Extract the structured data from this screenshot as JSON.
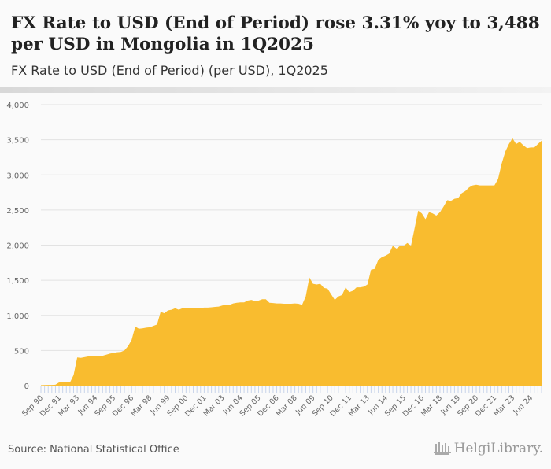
{
  "header": {
    "title": "FX Rate to USD (End of Period) rose 3.31% yoy to 3,488 per USD in Mongolia in 1Q2025",
    "subtitle": "FX Rate to USD (End of Period) (per USD), 1Q2025"
  },
  "footer": {
    "source": "Source: National Statistical Office",
    "logo_text": "HelgiLibrary."
  },
  "colors": {
    "fill": "#f9bc2f",
    "grid": "#e2e2e2",
    "axis": "#c8d4ea"
  },
  "chart_data": {
    "type": "area",
    "title": "FX Rate to USD (End of Period) (per USD), 1Q2025",
    "xlabel": "",
    "ylabel": "per USD",
    "frequency": "quarterly",
    "start": "3Q1990",
    "end": "1Q2025",
    "ylim": [
      0,
      4000
    ],
    "y_ticks": [
      0,
      500,
      1000,
      1500,
      2000,
      2500,
      3000,
      3500,
      4000
    ],
    "y_tick_labels": [
      "0",
      "500",
      "1,000",
      "1,500",
      "2,000",
      "2,500",
      "3,000",
      "3,500",
      "4,000"
    ],
    "x_tick_every": 5,
    "x_tick_labels": [
      "Sep 90",
      "Dec 91",
      "Mar 93",
      "Jun 94",
      "Sep 95",
      "Dec 96",
      "Mar 98",
      "Jun 99",
      "Sep 00",
      "Dec 01",
      "Mar 03",
      "Jun 04",
      "Sep 05",
      "Dec 06",
      "Mar 08",
      "Jun 09",
      "Sep 10",
      "Dec 11",
      "Mar 13",
      "Jun 14",
      "Sep 15",
      "Dec 16",
      "Mar 18",
      "Jun 19",
      "Sep 20",
      "Dec 21",
      "Mar 23",
      "Jun 24"
    ],
    "grid": true,
    "legend": "none",
    "values": [
      7,
      9,
      10,
      10,
      12,
      45,
      45,
      45,
      45,
      150,
      400,
      395,
      405,
      415,
      420,
      420,
      420,
      425,
      440,
      455,
      465,
      475,
      480,
      500,
      560,
      650,
      840,
      810,
      815,
      825,
      830,
      850,
      870,
      1050,
      1030,
      1070,
      1080,
      1100,
      1080,
      1100,
      1100,
      1100,
      1100,
      1100,
      1105,
      1110,
      1110,
      1115,
      1120,
      1125,
      1140,
      1150,
      1150,
      1170,
      1180,
      1185,
      1185,
      1210,
      1220,
      1205,
      1210,
      1230,
      1230,
      1180,
      1175,
      1170,
      1170,
      1165,
      1165,
      1165,
      1170,
      1165,
      1150,
      1270,
      1540,
      1450,
      1440,
      1450,
      1390,
      1380,
      1300,
      1220,
      1270,
      1290,
      1400,
      1330,
      1350,
      1400,
      1400,
      1410,
      1440,
      1650,
      1660,
      1790,
      1830,
      1850,
      1880,
      1990,
      1950,
      1990,
      1990,
      2030,
      1990,
      2240,
      2490,
      2450,
      2370,
      2470,
      2450,
      2420,
      2470,
      2550,
      2640,
      2630,
      2660,
      2670,
      2740,
      2770,
      2820,
      2850,
      2860,
      2850,
      2850,
      2850,
      2850,
      2850,
      2940,
      3160,
      3330,
      3440,
      3520,
      3440,
      3470,
      3420,
      3380,
      3390,
      3390,
      3440,
      3488
    ]
  }
}
